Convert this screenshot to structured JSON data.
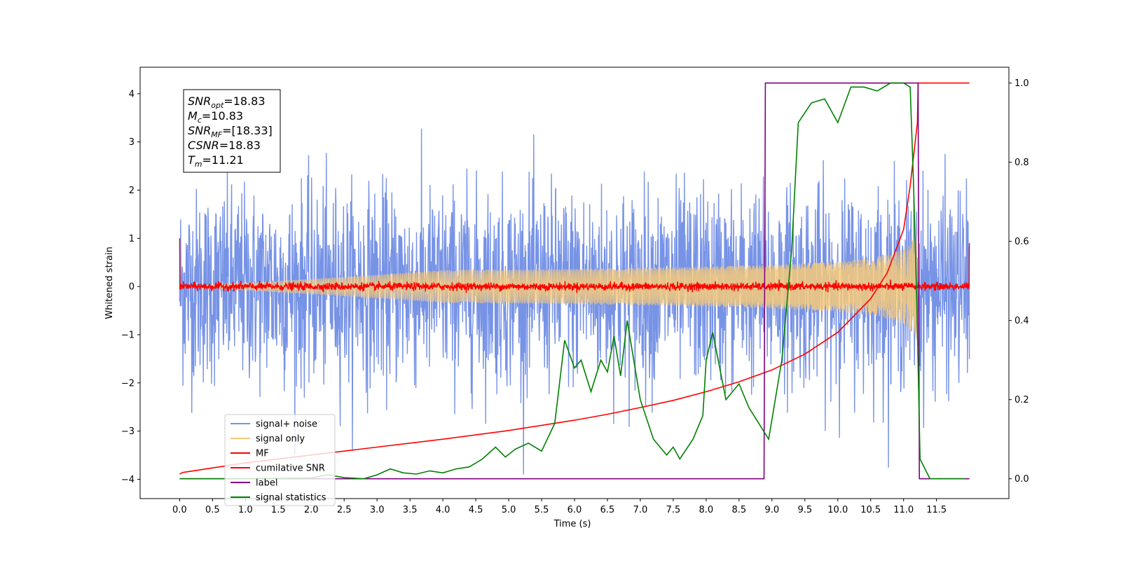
{
  "chart_data": {
    "type": "line",
    "title": "",
    "xlabel": "Time (s)",
    "ylabel": "Whitened strain",
    "y2label": "",
    "xlim": [
      -0.6,
      12.6
    ],
    "ylim": [
      -4.4,
      4.55
    ],
    "y2lim": [
      -0.05,
      1.04
    ],
    "xticks": [
      "0.0",
      "0.5",
      "1.0",
      "1.5",
      "2.0",
      "2.5",
      "3.0",
      "3.5",
      "4.0",
      "4.5",
      "5.0",
      "5.5",
      "6.0",
      "6.5",
      "7.0",
      "7.5",
      "8.0",
      "8.5",
      "9.0",
      "9.5",
      "10.0",
      "10.5",
      "11.0",
      "11.5"
    ],
    "yticks": [
      "−4",
      "−3",
      "−2",
      "−1",
      "0",
      "1",
      "2",
      "3",
      "4"
    ],
    "y2ticks": [
      "0.0",
      "0.2",
      "0.4",
      "0.6",
      "0.8",
      "1.0"
    ],
    "grid": false,
    "legend_position": "lower-left",
    "annotation_box": [
      {
        "sym": "SNR",
        "sub": "opt",
        "val": "=18.83"
      },
      {
        "sym": "M",
        "sub": "c",
        "val": "=10.83"
      },
      {
        "sym": "SNR",
        "sub": "MF",
        "val": "=[18.33]"
      },
      {
        "sym": "CSNR",
        "sub": "",
        "val": "=18.83"
      },
      {
        "sym": "T",
        "sub": "m",
        "val": "=11.21"
      }
    ],
    "series": [
      {
        "name": "signal+ noise",
        "color": "#7793e6",
        "axis": "left",
        "kind": "noise",
        "x_range": [
          0.0,
          12.0
        ],
        "amplitude_sigma": 1.0,
        "extreme_range": [
          -3.9,
          3.4
        ]
      },
      {
        "name": "signal only",
        "color": "#f5c97a",
        "axis": "left",
        "kind": "chirp",
        "x_range": [
          0.0,
          11.21
        ],
        "peak_time": 11.21,
        "peak_amplitude": 1.25
      },
      {
        "name": "MF",
        "color": "#ff0000",
        "axis": "left",
        "kind": "noise",
        "x_range": [
          0.0,
          12.0
        ],
        "amplitude_sigma": 0.04,
        "edge_values": [
          1.0,
          0.9
        ]
      },
      {
        "name": "cumilative SNR",
        "color": "#ff0000",
        "axis": "right",
        "kind": "line",
        "x": [
          0.0,
          0.05,
          1.0,
          2.0,
          3.0,
          4.0,
          5.0,
          5.5,
          6.0,
          6.5,
          7.0,
          7.5,
          8.0,
          8.5,
          9.0,
          9.5,
          10.0,
          10.5,
          10.75,
          11.0,
          11.1,
          11.21,
          11.22,
          11.5,
          12.0
        ],
        "y": [
          0.012,
          0.016,
          0.04,
          0.06,
          0.08,
          0.1,
          0.122,
          0.135,
          0.148,
          0.163,
          0.18,
          0.198,
          0.22,
          0.245,
          0.275,
          0.315,
          0.37,
          0.455,
          0.52,
          0.63,
          0.74,
          0.9,
          1.0,
          1.0,
          1.0
        ]
      },
      {
        "name": "label",
        "color": "#800080",
        "axis": "right",
        "kind": "line",
        "x": [
          0.0,
          8.88,
          8.9,
          11.22,
          11.24,
          12.0
        ],
        "y": [
          0.0,
          0.0,
          1.0,
          1.0,
          0.0,
          0.0
        ]
      },
      {
        "name": "signal statistics",
        "color": "#008000",
        "axis": "right",
        "kind": "line",
        "x": [
          0.0,
          1.0,
          2.0,
          2.25,
          2.5,
          2.8,
          3.0,
          3.2,
          3.4,
          3.6,
          3.8,
          4.0,
          4.2,
          4.4,
          4.6,
          4.8,
          4.95,
          5.1,
          5.3,
          5.5,
          5.7,
          5.85,
          6.0,
          6.1,
          6.25,
          6.4,
          6.5,
          6.6,
          6.7,
          6.8,
          6.9,
          7.0,
          7.2,
          7.4,
          7.5,
          7.6,
          7.8,
          7.95,
          8.0,
          8.1,
          8.3,
          8.5,
          8.65,
          8.8,
          8.95,
          9.05,
          9.15,
          9.3,
          9.4,
          9.6,
          9.8,
          10.0,
          10.2,
          10.4,
          10.6,
          10.8,
          11.0,
          11.1,
          11.15,
          11.2,
          11.25,
          11.4,
          11.6,
          11.93
        ],
        "y": [
          0.0,
          0.0,
          0.002,
          0.01,
          0.003,
          0.0,
          0.01,
          0.025,
          0.015,
          0.012,
          0.02,
          0.015,
          0.025,
          0.03,
          0.05,
          0.08,
          0.055,
          0.075,
          0.09,
          0.07,
          0.14,
          0.35,
          0.28,
          0.3,
          0.22,
          0.3,
          0.27,
          0.36,
          0.26,
          0.4,
          0.3,
          0.2,
          0.1,
          0.06,
          0.08,
          0.05,
          0.1,
          0.16,
          0.3,
          0.37,
          0.2,
          0.24,
          0.18,
          0.14,
          0.1,
          0.2,
          0.3,
          0.58,
          0.9,
          0.95,
          0.96,
          0.9,
          0.99,
          0.99,
          0.98,
          1.0,
          1.0,
          0.99,
          0.75,
          0.45,
          0.05,
          0.0,
          0.0,
          0.0
        ]
      }
    ]
  }
}
